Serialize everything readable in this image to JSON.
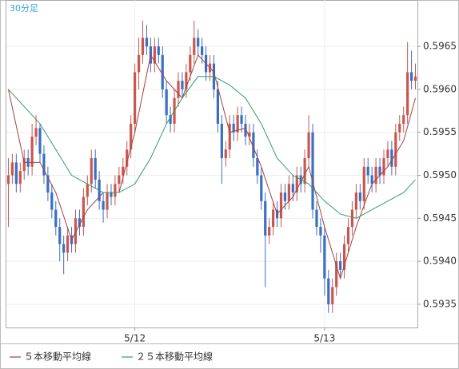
{
  "chart_data": {
    "type": "candlestick",
    "title": "30分足",
    "categories": [
      null,
      null,
      null,
      null,
      null,
      null,
      null,
      null,
      null,
      null,
      null,
      null,
      null,
      null,
      null,
      null,
      null,
      null,
      null,
      null,
      null,
      null,
      null,
      null,
      null,
      null,
      null,
      null,
      null,
      null,
      null,
      null,
      "5/12",
      null,
      null,
      null,
      null,
      null,
      null,
      null,
      null,
      null,
      null,
      null,
      null,
      null,
      null,
      null,
      null,
      null,
      null,
      null,
      null,
      null,
      null,
      null,
      null,
      null,
      null,
      null,
      null,
      null,
      null,
      null,
      null,
      null,
      null,
      null,
      null,
      null,
      null,
      null,
      null,
      null,
      null,
      null,
      null,
      null,
      null,
      null,
      "5/13",
      null,
      null,
      null,
      null,
      null,
      null,
      null,
      null,
      null,
      null,
      null,
      null,
      null,
      null,
      null,
      null,
      null,
      null,
      null,
      null,
      null,
      null,
      null
    ],
    "ohlc": [
      [
        0.5949,
        0.5952,
        0.5944,
        0.595
      ],
      [
        0.595,
        0.59525,
        0.5949,
        0.59515
      ],
      [
        0.59515,
        0.59525,
        0.5948,
        0.5949
      ],
      [
        0.5949,
        0.59515,
        0.5948,
        0.59505
      ],
      [
        0.59505,
        0.5953,
        0.59495,
        0.5952
      ],
      [
        0.5952,
        0.5953,
        0.595,
        0.5951
      ],
      [
        0.5951,
        0.5956,
        0.595,
        0.59545
      ],
      [
        0.59545,
        0.5957,
        0.59535,
        0.59555
      ],
      [
        0.59555,
        0.5956,
        0.59515,
        0.59525
      ],
      [
        0.59525,
        0.59535,
        0.5949,
        0.595
      ],
      [
        0.595,
        0.5951,
        0.5947,
        0.5948
      ],
      [
        0.5948,
        0.5949,
        0.5945,
        0.5946
      ],
      [
        0.5946,
        0.5947,
        0.5943,
        0.5944
      ],
      [
        0.5944,
        0.5945,
        0.594,
        0.5942
      ],
      [
        0.5942,
        0.5943,
        0.59385,
        0.5941
      ],
      [
        0.5941,
        0.5944,
        0.594,
        0.5943
      ],
      [
        0.5943,
        0.5944,
        0.5941,
        0.5942
      ],
      [
        0.5942,
        0.5946,
        0.5941,
        0.5945
      ],
      [
        0.5945,
        0.5946,
        0.5943,
        0.5944
      ],
      [
        0.5944,
        0.59485,
        0.5943,
        0.59475
      ],
      [
        0.59475,
        0.595,
        0.59465,
        0.5949
      ],
      [
        0.5949,
        0.5953,
        0.5948,
        0.5952
      ],
      [
        0.5952,
        0.5953,
        0.59485,
        0.59495
      ],
      [
        0.59495,
        0.59505,
        0.5946,
        0.5947
      ],
      [
        0.5947,
        0.5948,
        0.59445,
        0.5946
      ],
      [
        0.5946,
        0.5949,
        0.5945,
        0.5948
      ],
      [
        0.5948,
        0.5949,
        0.59465,
        0.59475
      ],
      [
        0.59475,
        0.595,
        0.59465,
        0.5949
      ],
      [
        0.5949,
        0.5951,
        0.5948,
        0.595
      ],
      [
        0.595,
        0.5952,
        0.5949,
        0.5951
      ],
      [
        0.5951,
        0.5954,
        0.595,
        0.5953
      ],
      [
        0.5953,
        0.5957,
        0.5952,
        0.5956
      ],
      [
        0.5956,
        0.5963,
        0.5955,
        0.5962
      ],
      [
        0.5962,
        0.5966,
        0.596,
        0.5964
      ],
      [
        0.5964,
        0.5968,
        0.5963,
        0.5966
      ],
      [
        0.5966,
        0.59675,
        0.5964,
        0.5965
      ],
      [
        0.5965,
        0.5966,
        0.5962,
        0.5963
      ],
      [
        0.5963,
        0.5966,
        0.5962,
        0.5965
      ],
      [
        0.5965,
        0.5966,
        0.5963,
        0.5964
      ],
      [
        0.5964,
        0.5965,
        0.5959,
        0.596
      ],
      [
        0.596,
        0.5961,
        0.5956,
        0.5957
      ],
      [
        0.5957,
        0.5958,
        0.5955,
        0.5956
      ],
      [
        0.5956,
        0.596,
        0.5955,
        0.5959
      ],
      [
        0.5959,
        0.5962,
        0.5958,
        0.5961
      ],
      [
        0.5961,
        0.5962,
        0.5959,
        0.596
      ],
      [
        0.596,
        0.5963,
        0.5959,
        0.5962
      ],
      [
        0.5962,
        0.5965,
        0.5961,
        0.5964
      ],
      [
        0.5964,
        0.5968,
        0.5963,
        0.5966
      ],
      [
        0.5966,
        0.5967,
        0.5964,
        0.5965
      ],
      [
        0.5965,
        0.5966,
        0.5963,
        0.5964
      ],
      [
        0.5964,
        0.5965,
        0.5961,
        0.5962
      ],
      [
        0.5962,
        0.5964,
        0.5961,
        0.5963
      ],
      [
        0.5963,
        0.5964,
        0.5959,
        0.596
      ],
      [
        0.596,
        0.5961,
        0.5955,
        0.5956
      ],
      [
        0.5956,
        0.5957,
        0.5949,
        0.5952
      ],
      [
        0.5952,
        0.5954,
        0.5951,
        0.5953
      ],
      [
        0.5953,
        0.5957,
        0.5952,
        0.5956
      ],
      [
        0.5956,
        0.5957,
        0.5954,
        0.5955
      ],
      [
        0.5955,
        0.5958,
        0.5954,
        0.5957
      ],
      [
        0.5957,
        0.5958,
        0.5955,
        0.5956
      ],
      [
        0.5956,
        0.5957,
        0.59535,
        0.59545
      ],
      [
        0.59545,
        0.5956,
        0.59535,
        0.5955
      ],
      [
        0.5955,
        0.5956,
        0.5951,
        0.5952
      ],
      [
        0.5952,
        0.5953,
        0.5949,
        0.595
      ],
      [
        0.595,
        0.5951,
        0.5946,
        0.5947
      ],
      [
        0.5947,
        0.5948,
        0.5937,
        0.5943
      ],
      [
        0.5943,
        0.5945,
        0.5942,
        0.5944
      ],
      [
        0.5944,
        0.5947,
        0.5943,
        0.5946
      ],
      [
        0.5946,
        0.5947,
        0.5944,
        0.5945
      ],
      [
        0.5945,
        0.5949,
        0.5944,
        0.5948
      ],
      [
        0.5948,
        0.5949,
        0.5946,
        0.5947
      ],
      [
        0.5947,
        0.595,
        0.5946,
        0.5949
      ],
      [
        0.5949,
        0.595,
        0.5947,
        0.5948
      ],
      [
        0.5948,
        0.5951,
        0.5947,
        0.595
      ],
      [
        0.595,
        0.5951,
        0.5948,
        0.5949
      ],
      [
        0.5949,
        0.5953,
        0.5948,
        0.5952
      ],
      [
        0.5952,
        0.5957,
        0.5951,
        0.5955
      ],
      [
        0.5955,
        0.5956,
        0.5945,
        0.5946
      ],
      [
        0.5946,
        0.5947,
        0.5943,
        0.5944
      ],
      [
        0.5944,
        0.5945,
        0.5941,
        0.5943
      ],
      [
        0.5943,
        0.5944,
        0.5936,
        0.5938
      ],
      [
        0.5938,
        0.5939,
        0.5934,
        0.5935
      ],
      [
        0.5935,
        0.5938,
        0.5934,
        0.5937
      ],
      [
        0.5937,
        0.5941,
        0.5936,
        0.594
      ],
      [
        0.594,
        0.5941,
        0.5938,
        0.5939
      ],
      [
        0.5939,
        0.5943,
        0.5938,
        0.5942
      ],
      [
        0.5942,
        0.5945,
        0.5941,
        0.5944
      ],
      [
        0.5944,
        0.5947,
        0.5943,
        0.5946
      ],
      [
        0.5946,
        0.5949,
        0.5945,
        0.5948
      ],
      [
        0.5948,
        0.5949,
        0.5946,
        0.5947
      ],
      [
        0.5947,
        0.5952,
        0.5946,
        0.5951
      ],
      [
        0.5951,
        0.5952,
        0.5949,
        0.595
      ],
      [
        0.595,
        0.5951,
        0.5948,
        0.5949
      ],
      [
        0.5949,
        0.5952,
        0.5948,
        0.5951
      ],
      [
        0.5951,
        0.5952,
        0.5949,
        0.595
      ],
      [
        0.595,
        0.5953,
        0.5949,
        0.5952
      ],
      [
        0.5952,
        0.5954,
        0.5951,
        0.5953
      ],
      [
        0.5953,
        0.5954,
        0.595,
        0.5951
      ],
      [
        0.5951,
        0.5956,
        0.595,
        0.5955
      ],
      [
        0.5955,
        0.5957,
        0.5954,
        0.5956
      ],
      [
        0.5956,
        0.5958,
        0.5955,
        0.5957
      ],
      [
        0.5957,
        0.59655,
        0.5956,
        0.5962
      ],
      [
        0.5962,
        0.59645,
        0.596,
        0.5961
      ],
      [
        0.5961,
        0.5963,
        0.596,
        0.59615
      ]
    ],
    "up_color": "#c8584f",
    "down_color": "#3a6fc4",
    "series": [
      {
        "name": "５本移動平均線",
        "color": "#a5403f",
        "x": [
          0,
          4,
          8,
          12,
          16,
          20,
          24,
          28,
          32,
          36,
          40,
          44,
          48,
          52,
          56,
          60,
          64,
          68,
          72,
          76,
          80,
          84,
          88,
          92,
          96,
          100,
          103
        ],
        "values": [
          0.596,
          0.59515,
          0.59515,
          0.5948,
          0.59425,
          0.5946,
          0.5948,
          0.5948,
          0.5955,
          0.5964,
          0.5961,
          0.5959,
          0.5964,
          0.5962,
          0.5955,
          0.59555,
          0.5951,
          0.59455,
          0.59475,
          0.5951,
          0.5944,
          0.5938,
          0.5944,
          0.5949,
          0.5951,
          0.5954,
          0.5959
        ]
      },
      {
        "name": "２５本移動平均線",
        "color": "#2e9e6a",
        "x": [
          0,
          4,
          8,
          12,
          16,
          20,
          24,
          28,
          32,
          36,
          40,
          44,
          48,
          52,
          56,
          60,
          64,
          68,
          72,
          76,
          80,
          84,
          88,
          92,
          96,
          100,
          103
        ],
        "values": [
          0.596,
          0.5958,
          0.5956,
          0.5953,
          0.595,
          0.5949,
          0.5948,
          0.5948,
          0.5949,
          0.5952,
          0.5956,
          0.5959,
          0.59615,
          0.59615,
          0.59605,
          0.5959,
          0.5956,
          0.5952,
          0.595,
          0.5949,
          0.5947,
          0.59455,
          0.5945,
          0.5946,
          0.5947,
          0.5948,
          0.59495
        ]
      }
    ],
    "ylim": [
      0.59323,
      0.59704
    ],
    "yticks": [
      0.5935,
      {
        "value": 0.594,
        "label": "0.5940"
      },
      0.5945,
      {
        "value": 0.595,
        "label": "0.5950"
      },
      0.5955,
      {
        "value": 0.596,
        "label": "0.5960"
      },
      0.5965
    ],
    "grid": true
  }
}
